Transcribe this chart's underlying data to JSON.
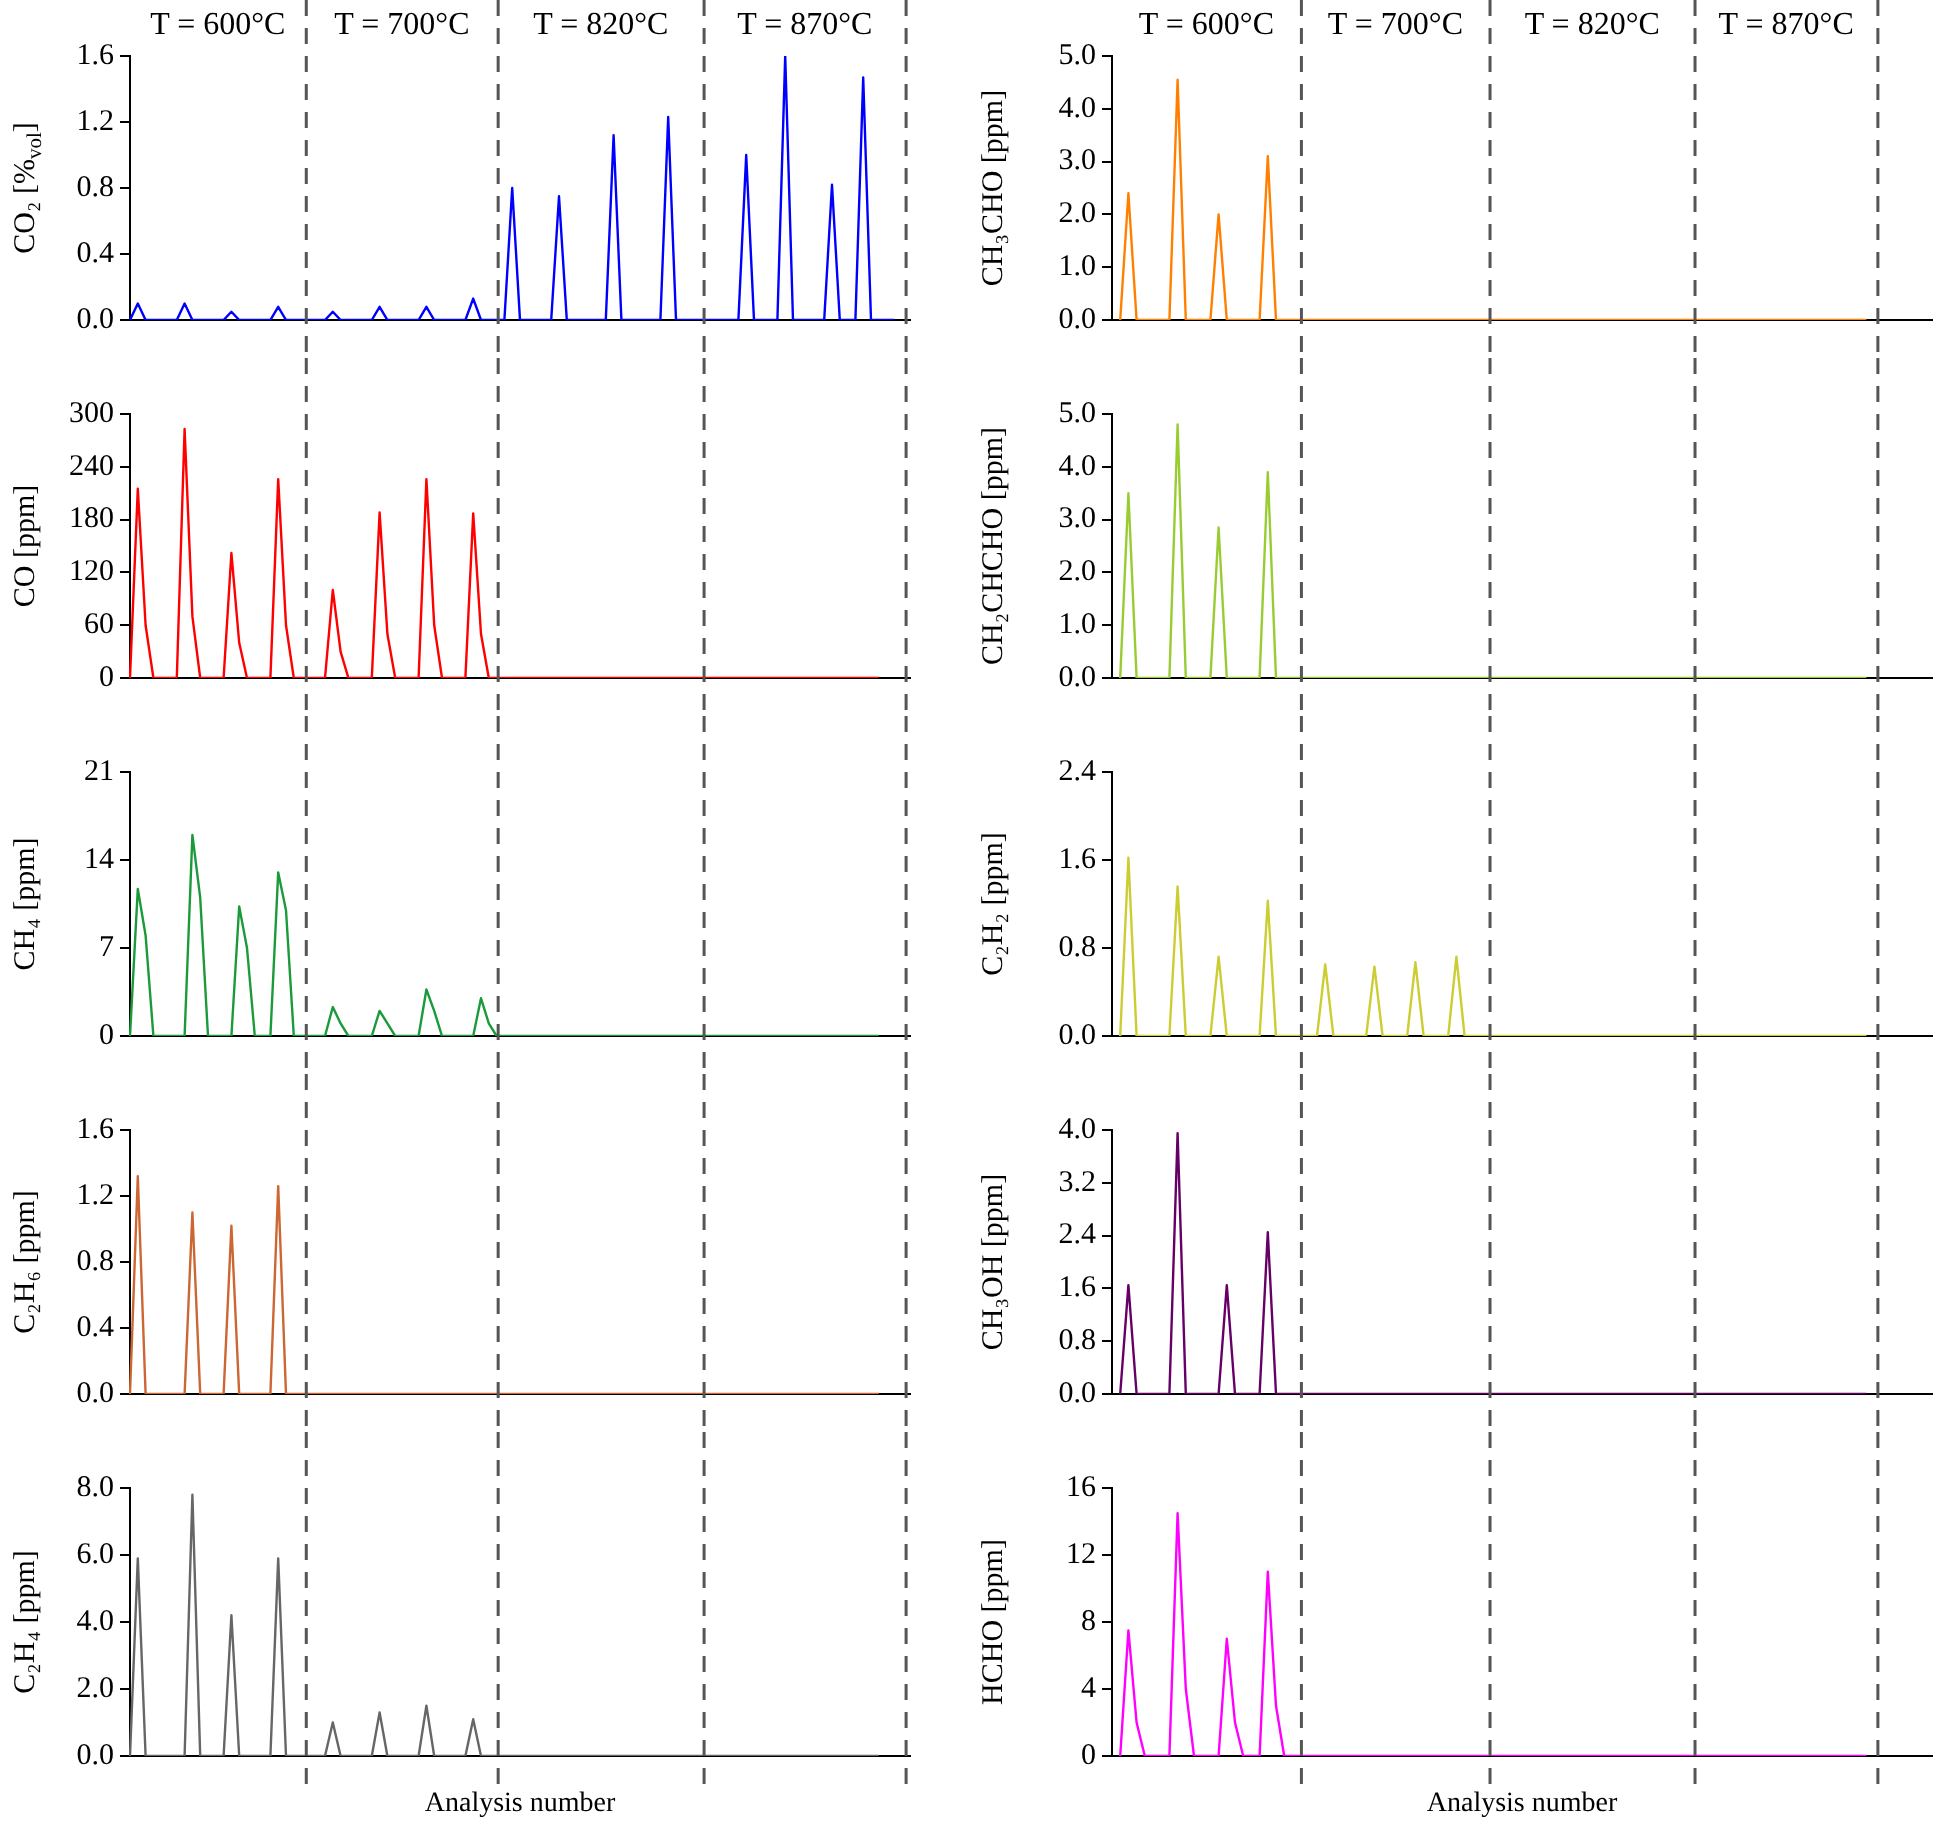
{
  "chart_data": [
    {
      "type": "line",
      "ylabel": "CO₂ [%$_{vol}$]",
      "annotations": [
        "T = 600°C",
        "T = 700°C",
        "T = 820°C",
        "T = 870°C"
      ],
      "color": "#0000ff",
      "ylim": [
        0,
        1.6
      ],
      "yticks": [
        {
          "value": 0,
          "label": "0.0"
        },
        0.4,
        0.8,
        1.2,
        1.6
      ],
      "tick_labels": "y",
      "categories": [
        null,
        null,
        null,
        null,
        null,
        null,
        null,
        null,
        null,
        null,
        null,
        null,
        null,
        null,
        null,
        null,
        null,
        null,
        null,
        null,
        null,
        null,
        null,
        null,
        null,
        null,
        null,
        null,
        null,
        null,
        null,
        null,
        null,
        null,
        null,
        null,
        null,
        null,
        null,
        null,
        null,
        null,
        null,
        null,
        null,
        null,
        null,
        null,
        null,
        null,
        null,
        null,
        null,
        null,
        null,
        null,
        null,
        null,
        null,
        null,
        null,
        null,
        null,
        null,
        null,
        null,
        null,
        null,
        null,
        null,
        null,
        null,
        null,
        null,
        null,
        null,
        null,
        null,
        null,
        null,
        null,
        null,
        null,
        null,
        null,
        null,
        null,
        null,
        null,
        null,
        null,
        null,
        null,
        null,
        null,
        null,
        null,
        null,
        null,
        null,
        null
      ],
      "values": [
        0,
        0.1,
        0,
        0,
        0,
        0,
        0,
        0.1,
        0,
        0,
        0,
        0,
        0,
        0.05,
        0,
        0,
        0,
        0,
        0,
        0.08,
        0,
        0,
        0,
        0,
        0,
        0,
        0.05,
        0,
        0,
        0,
        0,
        0,
        0.08,
        0,
        0,
        0,
        0,
        0,
        0.08,
        0,
        0,
        0,
        0,
        0,
        0.13,
        0,
        0,
        0,
        0,
        0.8,
        0,
        0,
        0,
        0,
        0,
        0.75,
        0,
        0,
        0,
        0,
        0,
        0,
        1.12,
        0,
        0,
        0,
        0,
        0,
        0,
        1.23,
        0,
        0,
        0,
        0,
        0,
        0,
        0,
        0,
        0,
        1.0,
        0,
        0,
        0,
        0,
        1.6,
        0,
        0,
        0,
        0,
        0,
        0.82,
        0,
        0,
        0,
        1.47,
        0,
        0,
        0,
        0,
        null,
        null
      ]
    },
    {
      "type": "line",
      "ylabel": "CO [ppm]",
      "color": "#ff0000",
      "ylim": [
        0,
        300
      ],
      "yticks": [
        0,
        60,
        120,
        180,
        240,
        300
      ],
      "tick_labels": "y",
      "categories": [
        null,
        null,
        null,
        null,
        null,
        null,
        null,
        null,
        null,
        null,
        null,
        null,
        null,
        null,
        null,
        null,
        null,
        null,
        null,
        null,
        null,
        null,
        null,
        null,
        null,
        null,
        null,
        null,
        null,
        null,
        null,
        null,
        null,
        null,
        null,
        null,
        null,
        null,
        null,
        null,
        null,
        null,
        null,
        null,
        null,
        null,
        null,
        null,
        null,
        null,
        null,
        null,
        null,
        null,
        null,
        null,
        null,
        null,
        null,
        null,
        null,
        null,
        null,
        null,
        null,
        null,
        null,
        null,
        null,
        null,
        null,
        null,
        null,
        null,
        null,
        null,
        null,
        null,
        null,
        null,
        null,
        null,
        null,
        null,
        null,
        null,
        null,
        null,
        null,
        null,
        null,
        null,
        null,
        null,
        null,
        null,
        null,
        null,
        null,
        null,
        null
      ],
      "values": [
        0,
        215,
        60,
        0,
        0,
        0,
        0,
        283,
        70,
        0,
        0,
        0,
        0,
        142,
        40,
        0,
        0,
        0,
        0,
        226,
        60,
        0,
        0,
        0,
        0,
        0,
        100,
        30,
        0,
        0,
        0,
        0,
        188,
        50,
        0,
        0,
        0,
        0,
        226,
        60,
        0,
        0,
        0,
        0,
        187,
        50,
        0,
        0,
        0,
        0,
        0,
        0,
        0,
        0,
        0,
        0,
        0,
        0,
        0,
        0,
        0,
        0,
        0,
        0,
        0,
        0,
        0,
        0,
        0,
        0,
        0,
        0,
        0,
        0,
        0,
        0,
        0,
        0,
        0,
        0,
        0,
        0,
        0,
        0,
        0,
        0,
        0,
        0,
        0,
        0,
        0,
        0,
        0,
        0,
        0,
        0,
        0,
        null,
        null,
        null,
        null
      ]
    },
    {
      "type": "line",
      "ylabel": "CH₄ [ppm]",
      "color": "#1a9a3a",
      "ylim": [
        0,
        21
      ],
      "yticks": [
        0,
        7,
        14,
        21
      ],
      "tick_labels": "y",
      "categories": [
        null,
        null,
        null,
        null,
        null,
        null,
        null,
        null,
        null,
        null,
        null,
        null,
        null,
        null,
        null,
        null,
        null,
        null,
        null,
        null,
        null,
        null,
        null,
        null,
        null,
        null,
        null,
        null,
        null,
        null,
        null,
        null,
        null,
        null,
        null,
        null,
        null,
        null,
        null,
        null,
        null,
        null,
        null,
        null,
        null,
        null,
        null,
        null,
        null,
        null,
        null,
        null,
        null,
        null,
        null,
        null,
        null,
        null,
        null,
        null,
        null,
        null,
        null,
        null,
        null,
        null,
        null,
        null,
        null,
        null,
        null,
        null,
        null,
        null,
        null,
        null,
        null,
        null,
        null,
        null,
        null,
        null,
        null,
        null,
        null,
        null,
        null,
        null,
        null,
        null,
        null,
        null,
        null,
        null,
        null,
        null,
        null,
        null,
        null,
        null,
        null
      ],
      "values": [
        0,
        11.7,
        8,
        0,
        0,
        0,
        0,
        0,
        16,
        11,
        0,
        0,
        0,
        0,
        10.3,
        7,
        0,
        0,
        0,
        13,
        10,
        0,
        0,
        0,
        0,
        0,
        2.3,
        1,
        0,
        0,
        0,
        0,
        2,
        1,
        0,
        0,
        0,
        0,
        3.7,
        2,
        0,
        0,
        0,
        0,
        0,
        3,
        1,
        0,
        0,
        0,
        0,
        0,
        0,
        0,
        0,
        0,
        0,
        0,
        0,
        0,
        0,
        0,
        0,
        0,
        0,
        0,
        0,
        0,
        0,
        0,
        0,
        0,
        0,
        0,
        0,
        0,
        0,
        0,
        0,
        0,
        0,
        0,
        0,
        0,
        0,
        0,
        0,
        0,
        0,
        0,
        0,
        0,
        0,
        0,
        0,
        0,
        0,
        null,
        null,
        null,
        null
      ]
    },
    {
      "type": "line",
      "ylabel": "C₂H₆ [ppm]",
      "color": "#cc6633",
      "ylim": [
        0,
        1.6
      ],
      "yticks": [
        {
          "value": 0,
          "label": "0.0"
        },
        0.4,
        0.8,
        1.2,
        1.6
      ],
      "tick_labels": "y",
      "categories": [
        null,
        null,
        null,
        null,
        null,
        null,
        null,
        null,
        null,
        null,
        null,
        null,
        null,
        null,
        null,
        null,
        null,
        null,
        null,
        null,
        null,
        null,
        null,
        null,
        null,
        null,
        null,
        null,
        null,
        null,
        null,
        null,
        null,
        null,
        null,
        null,
        null,
        null,
        null,
        null,
        null,
        null,
        null,
        null,
        null,
        null,
        null,
        null,
        null,
        null,
        null,
        null,
        null,
        null,
        null,
        null,
        null,
        null,
        null,
        null,
        null,
        null,
        null,
        null,
        null,
        null,
        null,
        null,
        null,
        null,
        null,
        null,
        null,
        null,
        null,
        null,
        null,
        null,
        null,
        null,
        null,
        null,
        null,
        null,
        null,
        null,
        null,
        null,
        null,
        null,
        null,
        null,
        null,
        null,
        null,
        null,
        null,
        null,
        null,
        null,
        null
      ],
      "values": [
        0,
        1.32,
        0,
        0,
        0,
        0,
        0,
        0,
        1.1,
        0,
        0,
        0,
        0,
        1.02,
        0,
        0,
        0,
        0,
        0,
        1.26,
        0,
        0,
        0,
        0,
        0,
        0,
        0,
        0,
        0,
        0,
        0,
        0,
        0,
        0,
        0,
        0,
        0,
        0,
        0,
        0,
        0,
        0,
        0,
        0,
        0,
        0,
        0,
        0,
        0,
        0,
        0,
        0,
        0,
        0,
        0,
        0,
        0,
        0,
        0,
        0,
        0,
        0,
        0,
        0,
        0,
        0,
        0,
        0,
        0,
        0,
        0,
        0,
        0,
        0,
        0,
        0,
        0,
        0,
        0,
        0,
        0,
        0,
        0,
        0,
        0,
        0,
        0,
        0,
        0,
        0,
        0,
        0,
        0,
        0,
        0,
        0,
        0,
        null,
        null,
        null,
        null
      ]
    },
    {
      "type": "line",
      "ylabel": "C₂H₄ [ppm]",
      "xlabel": "Analysis number",
      "color": "#666666",
      "ylim": [
        0,
        8
      ],
      "yticks": [
        {
          "value": 0,
          "label": "0.0"
        },
        {
          "value": 2,
          "label": "2.0"
        },
        {
          "value": 4,
          "label": "4.0"
        },
        {
          "value": 6,
          "label": "6.0"
        },
        {
          "value": 8,
          "label": "8.0"
        }
      ],
      "tick_labels": "y",
      "categories": [
        null,
        null,
        null,
        null,
        null,
        null,
        null,
        null,
        null,
        null,
        null,
        null,
        null,
        null,
        null,
        null,
        null,
        null,
        null,
        null,
        null,
        null,
        null,
        null,
        null,
        null,
        null,
        null,
        null,
        null,
        null,
        null,
        null,
        null,
        null,
        null,
        null,
        null,
        null,
        null,
        null,
        null,
        null,
        null,
        null,
        null,
        null,
        null,
        null,
        null,
        null,
        null,
        null,
        null,
        null,
        null,
        null,
        null,
        null,
        null,
        null,
        null,
        null,
        null,
        null,
        null,
        null,
        null,
        null,
        null,
        null,
        null,
        null,
        null,
        null,
        null,
        null,
        null,
        null,
        null,
        null,
        null,
        null,
        null,
        null,
        null,
        null,
        null,
        null,
        null,
        null,
        null,
        null,
        null,
        null,
        null,
        null,
        null,
        null,
        null,
        null
      ],
      "values": [
        0,
        5.9,
        0,
        0,
        0,
        0,
        0,
        0,
        7.8,
        0,
        0,
        0,
        0,
        4.2,
        0,
        0,
        0,
        0,
        0,
        5.9,
        0,
        0,
        0,
        0,
        0,
        0,
        1.0,
        0,
        0,
        0,
        0,
        0,
        1.3,
        0,
        0,
        0,
        0,
        0,
        1.5,
        0,
        0,
        0,
        0,
        0,
        1.1,
        0,
        0,
        0,
        0,
        0,
        0,
        0,
        0,
        0,
        0,
        0,
        0,
        0,
        0,
        0,
        0,
        0,
        0,
        0,
        0,
        0,
        0,
        0,
        0,
        0,
        0,
        0,
        0,
        0,
        0,
        0,
        0,
        0,
        0,
        0,
        0,
        0,
        0,
        0,
        0,
        0,
        0,
        0,
        0,
        0,
        0,
        0,
        0,
        0,
        0,
        0,
        0,
        null,
        null,
        null,
        null
      ]
    },
    {
      "type": "line",
      "ylabel": "CH₃CHO [ppm]",
      "annotations": [
        "T = 600°C",
        "T = 700°C",
        "T = 820°C",
        "T = 870°C"
      ],
      "color": "#ff8000",
      "ylim": [
        0,
        5
      ],
      "yticks": [
        {
          "value": 0,
          "label": "0.0"
        },
        {
          "value": 1,
          "label": "1.0"
        },
        {
          "value": 2,
          "label": "2.0"
        },
        {
          "value": 3,
          "label": "3.0"
        },
        {
          "value": 4,
          "label": "4.0"
        },
        {
          "value": 5,
          "label": "5.0"
        }
      ],
      "tick_labels": "y",
      "categories": [
        null,
        null,
        null,
        null,
        null,
        null,
        null,
        null,
        null,
        null,
        null,
        null,
        null,
        null,
        null,
        null,
        null,
        null,
        null,
        null,
        null,
        null,
        null,
        null,
        null,
        null,
        null,
        null,
        null,
        null,
        null,
        null,
        null,
        null,
        null,
        null,
        null,
        null,
        null,
        null,
        null,
        null,
        null,
        null,
        null,
        null,
        null,
        null,
        null,
        null,
        null,
        null,
        null,
        null,
        null,
        null,
        null,
        null,
        null,
        null,
        null,
        null,
        null,
        null,
        null,
        null,
        null,
        null,
        null,
        null,
        null,
        null,
        null,
        null,
        null,
        null,
        null,
        null,
        null,
        null,
        null,
        null,
        null,
        null,
        null,
        null,
        null,
        null,
        null,
        null,
        null,
        null,
        null,
        null,
        null,
        null,
        null,
        null,
        null,
        null,
        null
      ],
      "values": [
        null,
        0,
        2.4,
        0,
        0,
        0,
        0,
        0,
        4.55,
        0,
        0,
        0,
        0,
        2.0,
        0,
        0,
        0,
        0,
        0,
        3.1,
        0,
        0,
        0,
        0,
        0,
        0,
        0,
        0,
        0,
        0,
        0,
        0,
        0,
        0,
        0,
        0,
        0,
        0,
        0,
        0,
        0,
        0,
        0,
        0,
        0,
        0,
        0,
        0,
        0,
        0,
        0,
        0,
        0,
        0,
        0,
        0,
        0,
        0,
        0,
        0,
        0,
        0,
        0,
        0,
        0,
        0,
        0,
        0,
        0,
        0,
        0,
        0,
        0,
        0,
        0,
        0,
        0,
        0,
        0,
        0,
        0,
        0,
        0,
        0,
        0,
        0,
        0,
        0,
        0,
        0,
        0,
        0,
        0,
        null,
        null,
        null,
        null,
        null,
        null,
        null,
        null
      ]
    },
    {
      "type": "line",
      "ylabel": "CH₂CHCHO [ppm]",
      "color": "#99cc33",
      "ylim": [
        0,
        5
      ],
      "yticks": [
        {
          "value": 0,
          "label": "0.0"
        },
        {
          "value": 1,
          "label": "1.0"
        },
        {
          "value": 2,
          "label": "2.0"
        },
        {
          "value": 3,
          "label": "3.0"
        },
        {
          "value": 4,
          "label": "4.0"
        },
        {
          "value": 5,
          "label": "5.0"
        }
      ],
      "tick_labels": "y",
      "categories": [
        null,
        null,
        null,
        null,
        null,
        null,
        null,
        null,
        null,
        null,
        null,
        null,
        null,
        null,
        null,
        null,
        null,
        null,
        null,
        null,
        null,
        null,
        null,
        null,
        null,
        null,
        null,
        null,
        null,
        null,
        null,
        null,
        null,
        null,
        null,
        null,
        null,
        null,
        null,
        null,
        null,
        null,
        null,
        null,
        null,
        null,
        null,
        null,
        null,
        null,
        null,
        null,
        null,
        null,
        null,
        null,
        null,
        null,
        null,
        null,
        null,
        null,
        null,
        null,
        null,
        null,
        null,
        null,
        null,
        null,
        null,
        null,
        null,
        null,
        null,
        null,
        null,
        null,
        null,
        null,
        null,
        null,
        null,
        null,
        null,
        null,
        null,
        null,
        null,
        null,
        null,
        null,
        null,
        null,
        null,
        null,
        null,
        null,
        null,
        null,
        null
      ],
      "values": [
        null,
        0,
        3.5,
        0,
        0,
        0,
        0,
        0,
        4.8,
        0,
        0,
        0,
        0,
        2.85,
        0,
        0,
        0,
        0,
        0,
        3.9,
        0,
        0,
        0,
        0,
        0,
        0,
        0,
        0,
        0,
        0,
        0,
        0,
        0,
        0,
        0,
        0,
        0,
        0,
        0,
        0,
        0,
        0,
        0,
        0,
        0,
        0,
        0,
        0,
        0,
        0,
        0,
        0,
        0,
        0,
        0,
        0,
        0,
        0,
        0,
        0,
        0,
        0,
        0,
        0,
        0,
        0,
        0,
        0,
        0,
        0,
        0,
        0,
        0,
        0,
        0,
        0,
        0,
        0,
        0,
        0,
        0,
        0,
        0,
        0,
        0,
        0,
        0,
        0,
        0,
        0,
        0,
        0,
        0,
        null,
        null,
        null,
        null,
        null,
        null,
        null,
        null
      ]
    },
    {
      "type": "line",
      "ylabel": "C₂H₂ [ppm]",
      "color": "#cccc33",
      "ylim": [
        0,
        2.4
      ],
      "yticks": [
        {
          "value": 0,
          "label": "0.0"
        },
        0.8,
        1.6,
        2.4
      ],
      "tick_labels": "y",
      "categories": [
        null,
        null,
        null,
        null,
        null,
        null,
        null,
        null,
        null,
        null,
        null,
        null,
        null,
        null,
        null,
        null,
        null,
        null,
        null,
        null,
        null,
        null,
        null,
        null,
        null,
        null,
        null,
        null,
        null,
        null,
        null,
        null,
        null,
        null,
        null,
        null,
        null,
        null,
        null,
        null,
        null,
        null,
        null,
        null,
        null,
        null,
        null,
        null,
        null,
        null,
        null,
        null,
        null,
        null,
        null,
        null,
        null,
        null,
        null,
        null,
        null,
        null,
        null,
        null,
        null,
        null,
        null,
        null,
        null,
        null,
        null,
        null,
        null,
        null,
        null,
        null,
        null,
        null,
        null,
        null,
        null,
        null,
        null,
        null,
        null,
        null,
        null,
        null,
        null,
        null,
        null,
        null,
        null,
        null,
        null,
        null,
        null,
        null,
        null,
        null,
        null
      ],
      "values": [
        null,
        0,
        1.62,
        0,
        0,
        0,
        0,
        0,
        1.36,
        0,
        0,
        0,
        0,
        0.72,
        0,
        0,
        0,
        0,
        0,
        1.23,
        0,
        0,
        0,
        0,
        0,
        0,
        0.65,
        0,
        0,
        0,
        0,
        0,
        0.63,
        0,
        0,
        0,
        0,
        0.67,
        0,
        0,
        0,
        0,
        0.72,
        0,
        0,
        0,
        0,
        0,
        0,
        0,
        0,
        0,
        0,
        0,
        0,
        0,
        0,
        0,
        0,
        0,
        0,
        0,
        0,
        0,
        0,
        0,
        0,
        0,
        0,
        0,
        0,
        0,
        0,
        0,
        0,
        0,
        0,
        0,
        0,
        0,
        0,
        0,
        0,
        0,
        0,
        0,
        0,
        0,
        0,
        0,
        0,
        0,
        0,
        null,
        null,
        null,
        null,
        null,
        null,
        null,
        null
      ]
    },
    {
      "type": "line",
      "ylabel": "CH₃OH [ppm]",
      "color": "#660066",
      "ylim": [
        0,
        4
      ],
      "yticks": [
        {
          "value": 0,
          "label": "0.0"
        },
        0.8,
        1.6,
        2.4,
        3.2,
        {
          "value": 4,
          "label": "4.0"
        }
      ],
      "tick_labels": "y",
      "categories": [
        null,
        null,
        null,
        null,
        null,
        null,
        null,
        null,
        null,
        null,
        null,
        null,
        null,
        null,
        null,
        null,
        null,
        null,
        null,
        null,
        null,
        null,
        null,
        null,
        null,
        null,
        null,
        null,
        null,
        null,
        null,
        null,
        null,
        null,
        null,
        null,
        null,
        null,
        null,
        null,
        null,
        null,
        null,
        null,
        null,
        null,
        null,
        null,
        null,
        null,
        null,
        null,
        null,
        null,
        null,
        null,
        null,
        null,
        null,
        null,
        null,
        null,
        null,
        null,
        null,
        null,
        null,
        null,
        null,
        null,
        null,
        null,
        null,
        null,
        null,
        null,
        null,
        null,
        null,
        null,
        null,
        null,
        null,
        null,
        null,
        null,
        null,
        null,
        null,
        null,
        null,
        null,
        null,
        null,
        null,
        null,
        null,
        null,
        null,
        null,
        null
      ],
      "values": [
        null,
        0,
        1.65,
        0,
        0,
        0,
        0,
        0,
        3.95,
        0,
        0,
        0,
        0,
        0,
        1.65,
        0,
        0,
        0,
        0,
        2.45,
        0,
        0,
        0,
        0,
        0,
        0,
        0,
        0,
        0,
        0,
        0,
        0,
        0,
        0,
        0,
        0,
        0,
        0,
        0,
        0,
        0,
        0,
        0,
        0,
        0,
        0,
        0,
        0,
        0,
        0,
        0,
        0,
        0,
        0,
        0,
        0,
        0,
        0,
        0,
        0,
        0,
        0,
        0,
        0,
        0,
        0,
        0,
        0,
        0,
        0,
        0,
        0,
        0,
        0,
        0,
        0,
        0,
        0,
        0,
        0,
        0,
        0,
        0,
        0,
        0,
        0,
        0,
        0,
        0,
        0,
        0,
        0,
        0,
        null,
        null,
        null,
        null,
        null,
        null,
        null,
        null
      ]
    },
    {
      "type": "line",
      "ylabel": "HCHO [ppm]",
      "xlabel": "Analysis number",
      "color": "#ff00ff",
      "ylim": [
        0,
        16
      ],
      "yticks": [
        0,
        4,
        8,
        12,
        16
      ],
      "tick_labels": "y",
      "categories": [
        null,
        null,
        null,
        null,
        null,
        null,
        null,
        null,
        null,
        null,
        null,
        null,
        null,
        null,
        null,
        null,
        null,
        null,
        null,
        null,
        null,
        null,
        null,
        null,
        null,
        null,
        null,
        null,
        null,
        null,
        null,
        null,
        null,
        null,
        null,
        null,
        null,
        null,
        null,
        null,
        null,
        null,
        null,
        null,
        null,
        null,
        null,
        null,
        null,
        null,
        null,
        null,
        null,
        null,
        null,
        null,
        null,
        null,
        null,
        null,
        null,
        null,
        null,
        null,
        null,
        null,
        null,
        null,
        null,
        null,
        null,
        null,
        null,
        null,
        null,
        null,
        null,
        null,
        null,
        null,
        null,
        null,
        null,
        null,
        null,
        null,
        null,
        null,
        null,
        null,
        null,
        null,
        null,
        null,
        null,
        null,
        null,
        null,
        null,
        null,
        null
      ],
      "values": [
        null,
        0,
        7.5,
        2,
        0,
        0,
        0,
        0,
        14.5,
        4,
        0,
        0,
        0,
        0,
        7,
        2,
        0,
        0,
        0,
        11,
        3,
        0,
        0,
        0,
        0,
        0,
        0,
        0,
        0,
        0,
        0,
        0,
        0,
        0,
        0,
        0,
        0,
        0,
        0,
        0,
        0,
        0,
        0,
        0,
        0,
        0,
        0,
        0,
        0,
        0,
        0,
        0,
        0,
        0,
        0,
        0,
        0,
        0,
        0,
        0,
        0,
        0,
        0,
        0,
        0,
        0,
        0,
        0,
        0,
        0,
        0,
        0,
        0,
        0,
        0,
        0,
        0,
        0,
        0,
        0,
        0,
        0,
        0,
        0,
        0,
        0,
        0,
        0,
        0,
        0,
        0,
        0,
        0,
        null,
        null,
        null,
        null,
        null,
        null,
        null,
        null
      ]
    }
  ]
}
